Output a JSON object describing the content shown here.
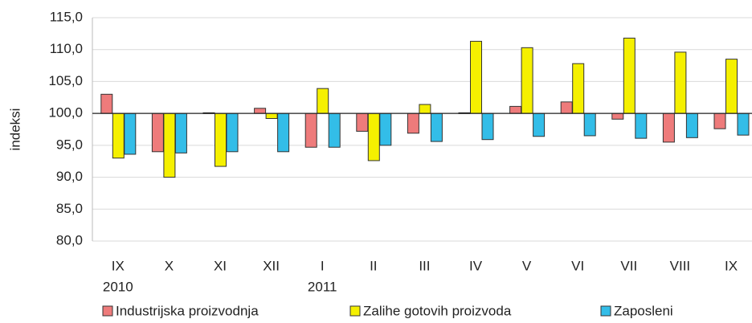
{
  "chart_data": {
    "type": "bar",
    "y_label": "indeksi",
    "categories": [
      "IX",
      "X",
      "XI",
      "XII",
      "I",
      "II",
      "III",
      "IV",
      "V",
      "VI",
      "VII",
      "VIII",
      "IX"
    ],
    "year_labels": [
      "2010",
      null,
      null,
      null,
      "2011",
      null,
      null,
      null,
      null,
      null,
      null,
      null,
      null
    ],
    "series": [
      {
        "name": "Industrijska proizvodnja",
        "color": "#ee7b7b",
        "values": [
          103.0,
          94.0,
          100.1,
          100.8,
          94.7,
          97.2,
          96.9,
          100.1,
          101.1,
          101.8,
          99.1,
          95.5,
          97.6
        ]
      },
      {
        "name": "Zalihe gotovih proizvoda",
        "color": "#f5f000",
        "values": [
          93.0,
          90.0,
          91.7,
          99.2,
          103.9,
          92.6,
          101.4,
          111.3,
          110.3,
          107.8,
          111.8,
          109.6,
          108.5
        ]
      },
      {
        "name": "Zaposleni",
        "color": "#33bde8",
        "values": [
          93.6,
          93.8,
          94.0,
          94.0,
          94.7,
          95.0,
          95.6,
          95.9,
          96.4,
          96.5,
          96.1,
          96.2,
          96.6
        ]
      }
    ],
    "bar_base": 100,
    "ylim": [
      80,
      115
    ],
    "yticks": [
      {
        "value": 80,
        "label": "80,0"
      },
      {
        "value": 85,
        "label": "85,0"
      },
      {
        "value": 90,
        "label": "90,0"
      },
      {
        "value": 95,
        "label": "95,0"
      },
      {
        "value": 100,
        "label": "100,0"
      },
      {
        "value": 105,
        "label": "105,0"
      },
      {
        "value": 110,
        "label": "110,0"
      },
      {
        "value": 115,
        "label": "115,0"
      }
    ],
    "grid": true,
    "legend": "bottom"
  }
}
